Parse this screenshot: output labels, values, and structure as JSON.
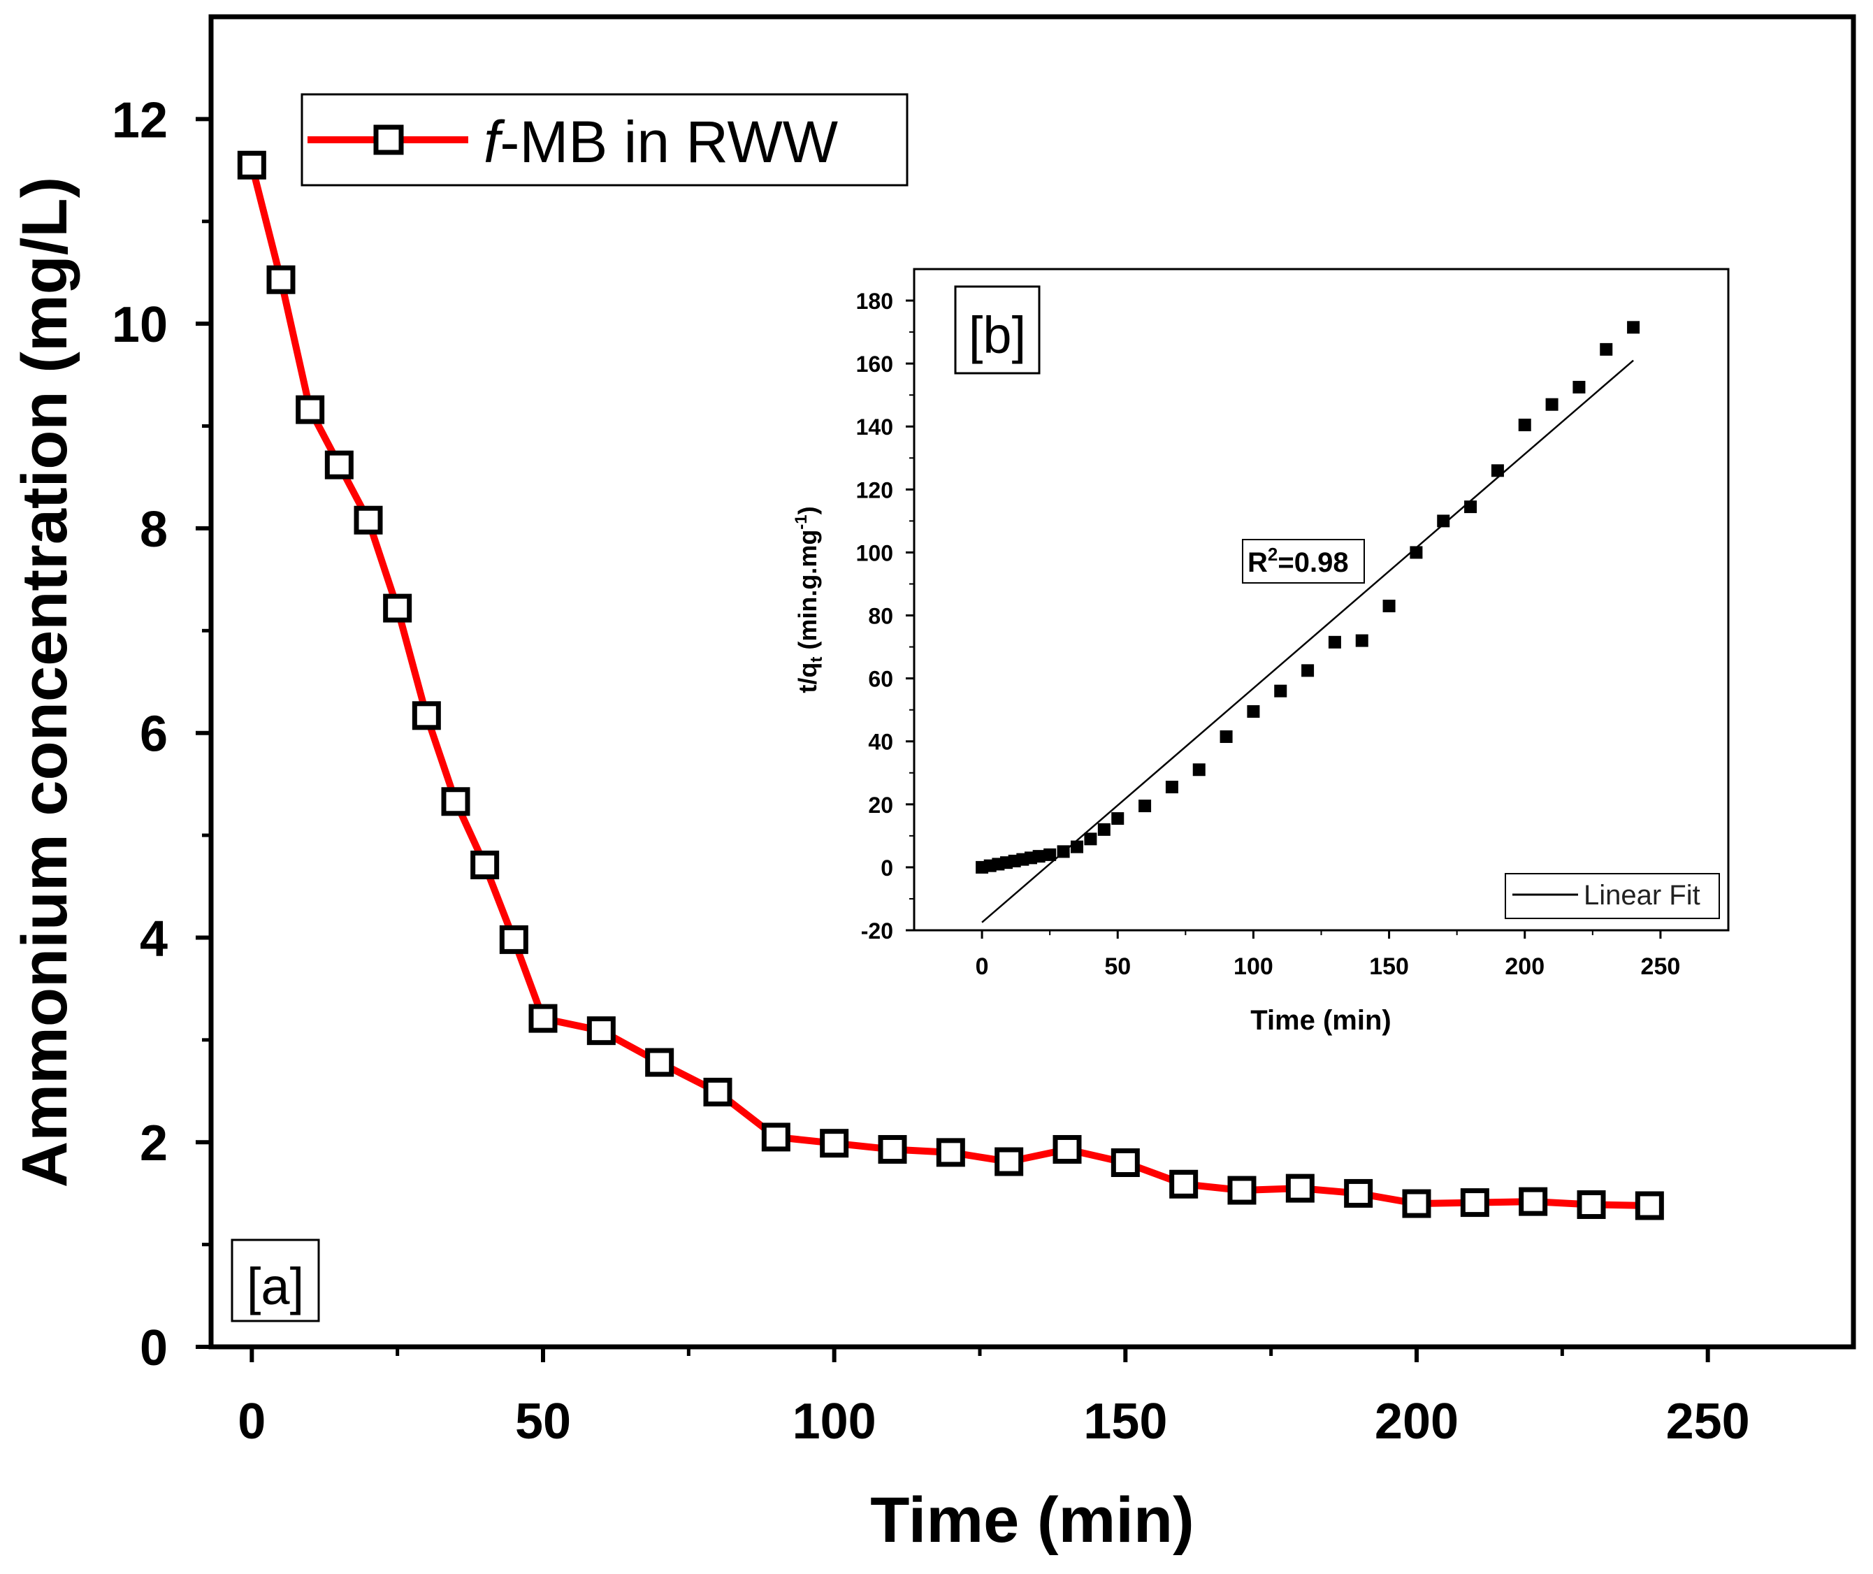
{
  "chart_data": [
    {
      "panel": "[a]",
      "type": "line",
      "xlabel": "Time (min)",
      "ylabel": "Ammonium concentration (mg/L)",
      "xlim": [
        -7,
        275
      ],
      "ylim": [
        0,
        13
      ],
      "xticks": [
        0,
        50,
        100,
        150,
        200,
        250
      ],
      "yticks": [
        0,
        2,
        4,
        6,
        8,
        10,
        12
      ],
      "legend": {
        "label_prefix": "f",
        "label_rest": "-MB in RWW",
        "position": "top-left"
      },
      "series": [
        {
          "name": "f-MB in RWW",
          "color": "#ff0000",
          "marker": "open-square",
          "x": [
            0,
            5,
            10,
            15,
            20,
            25,
            30,
            35,
            40,
            45,
            50,
            60,
            70,
            80,
            90,
            100,
            110,
            120,
            130,
            140,
            150,
            160,
            170,
            180,
            190,
            200,
            210,
            220,
            230,
            240
          ],
          "y": [
            11.55,
            10.43,
            9.16,
            8.62,
            8.08,
            7.22,
            6.17,
            5.33,
            4.71,
            3.98,
            3.21,
            3.09,
            2.78,
            2.49,
            2.05,
            1.99,
            1.93,
            1.9,
            1.81,
            1.93,
            1.8,
            1.59,
            1.53,
            1.55,
            1.5,
            1.4,
            1.41,
            1.42,
            1.39,
            1.38
          ]
        }
      ]
    },
    {
      "panel": "[b]",
      "type": "scatter",
      "xlabel": "Time (min)",
      "ylabel": "t/q",
      "ylabel_sub": "t",
      "ylabel_unit": " (min.g.mg",
      "ylabel_sup": "-1",
      "ylabel_close": ")",
      "xlim": [
        -25,
        275
      ],
      "ylim": [
        -20,
        190
      ],
      "xticks": [
        0,
        50,
        100,
        150,
        200,
        250
      ],
      "yticks": [
        -20,
        0,
        20,
        40,
        60,
        80,
        100,
        120,
        140,
        160,
        180
      ],
      "annotation": {
        "prefix": "R",
        "sup": "2",
        "rest": "=0.98"
      },
      "legend": {
        "label": "Linear Fit",
        "position": "bottom-right"
      },
      "series": [
        {
          "name": "data",
          "marker": "filled-square",
          "x": [
            0,
            3,
            6,
            9,
            12,
            15,
            18,
            21,
            25,
            30,
            35,
            40,
            45,
            50,
            60,
            70,
            80,
            90,
            100,
            110,
            120,
            130,
            140,
            150,
            160,
            170,
            180,
            190,
            200,
            210,
            220,
            230,
            240
          ],
          "y": [
            0,
            0.5,
            1,
            1.5,
            2,
            2.5,
            3,
            3.5,
            4,
            5,
            6.5,
            9,
            12,
            15.5,
            19.5,
            25.5,
            31,
            41.5,
            49.5,
            56,
            62.5,
            71.5,
            72,
            83,
            100,
            110,
            114.5,
            126,
            140.5,
            147,
            152.5,
            164.5,
            171.5
          ]
        },
        {
          "name": "Linear Fit",
          "type": "line",
          "x": [
            0,
            240
          ],
          "y": [
            -17.5,
            161
          ]
        }
      ]
    }
  ]
}
